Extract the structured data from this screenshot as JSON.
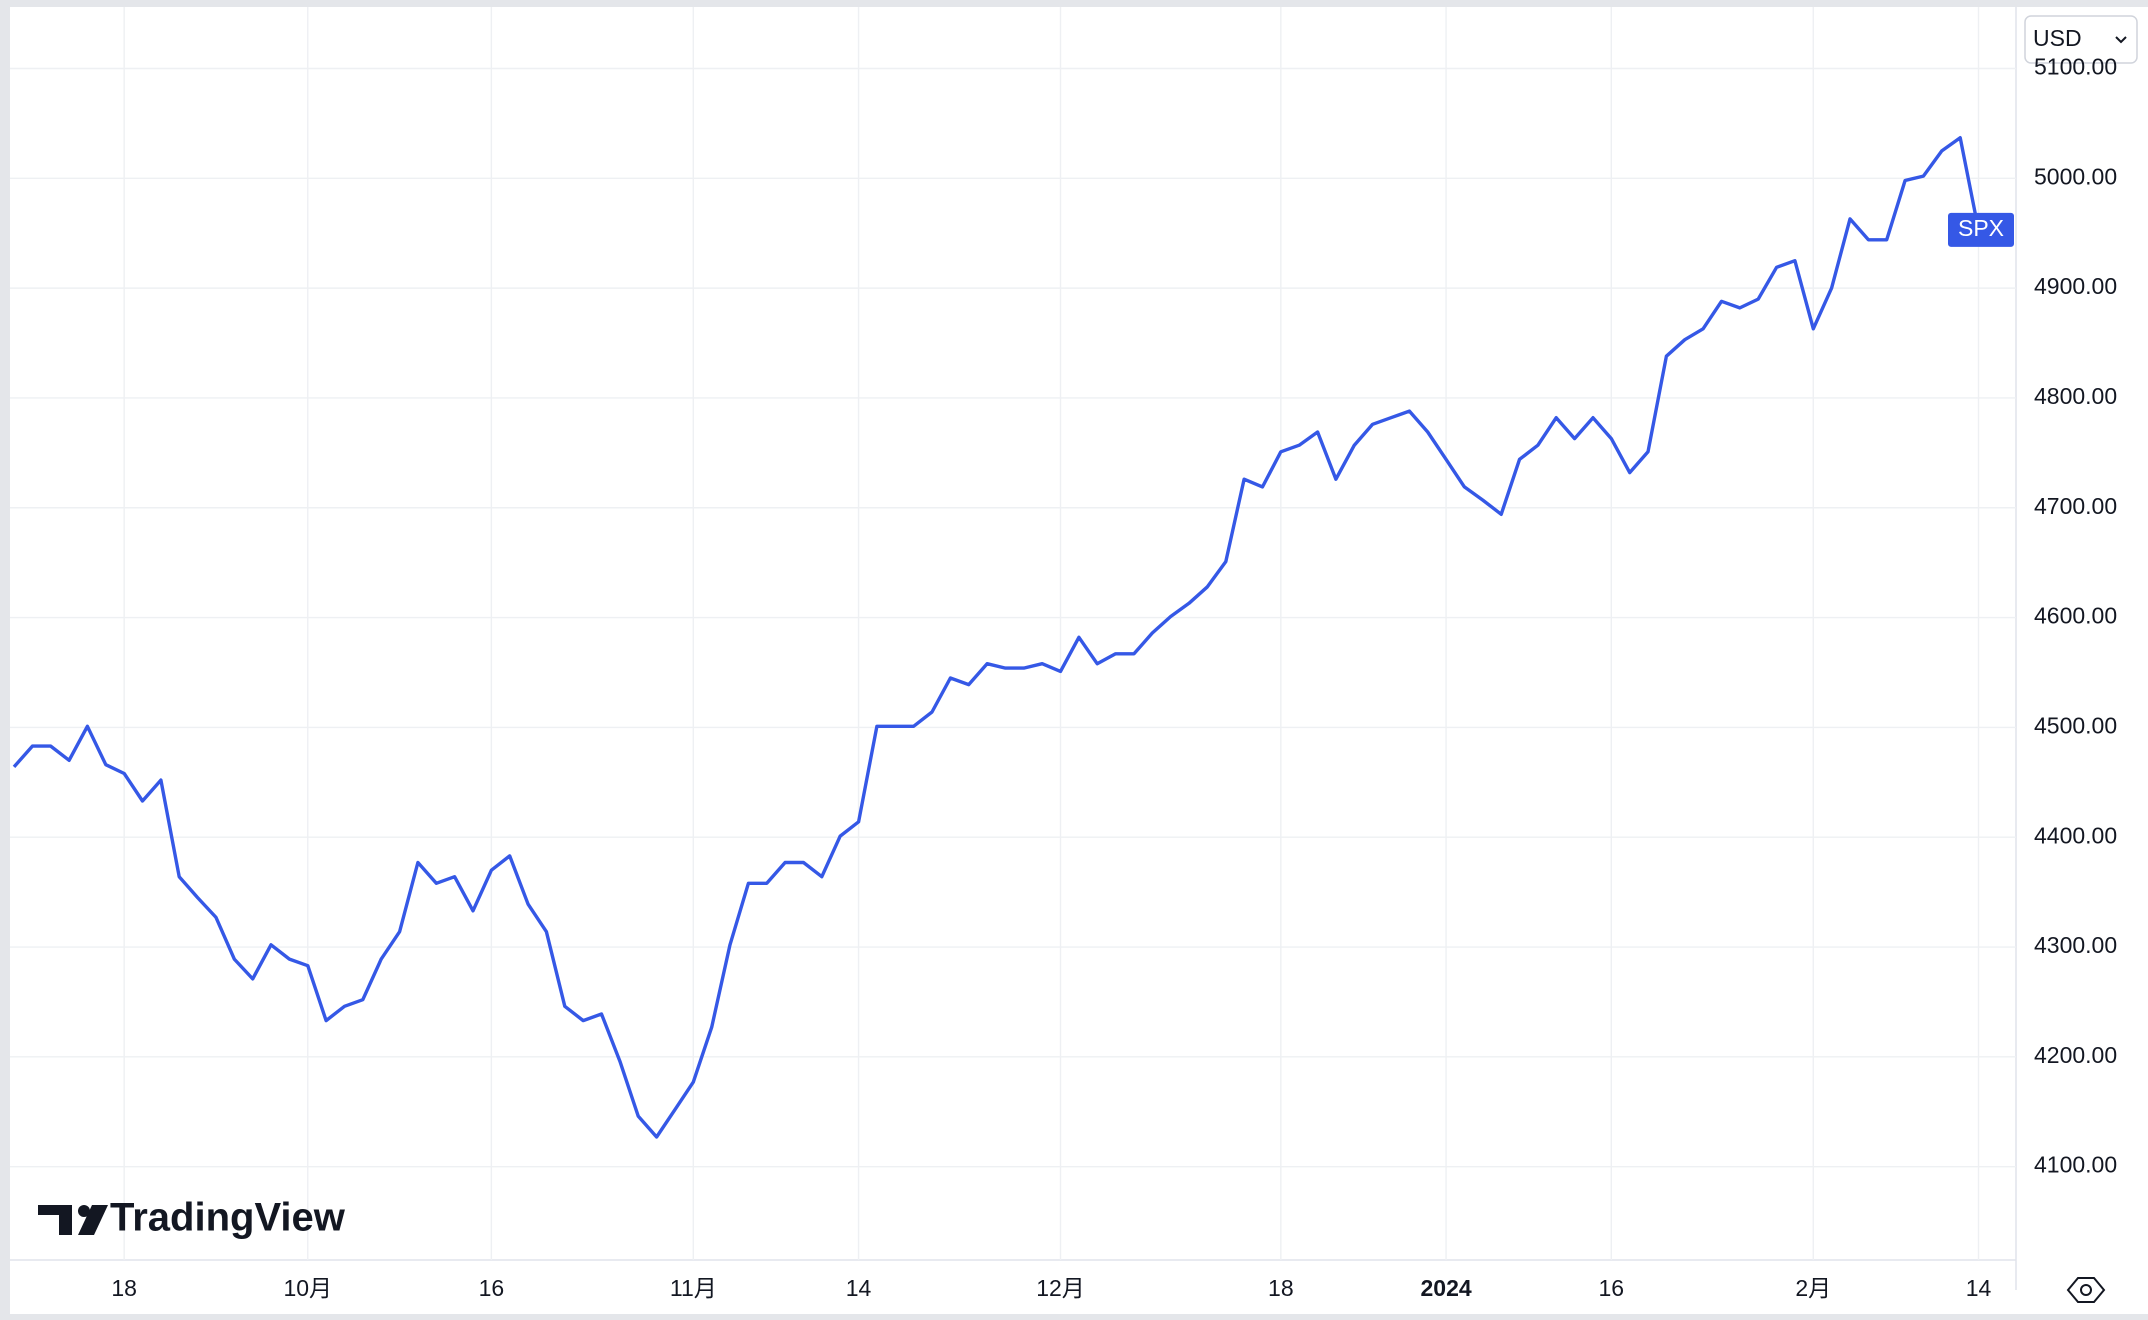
{
  "chart_data": {
    "type": "line",
    "logo": "TradingView",
    "currency": "USD",
    "categories": [
      null,
      null,
      null,
      null,
      null,
      null,
      "18",
      null,
      null,
      null,
      null,
      null,
      null,
      null,
      null,
      null,
      "10月",
      null,
      null,
      null,
      null,
      null,
      null,
      null,
      null,
      null,
      "16",
      null,
      null,
      null,
      null,
      null,
      null,
      null,
      null,
      null,
      null,
      "11月",
      null,
      null,
      null,
      null,
      null,
      null,
      null,
      null,
      "14",
      null,
      null,
      null,
      null,
      null,
      null,
      null,
      null,
      null,
      null,
      "12月",
      null,
      null,
      null,
      null,
      null,
      null,
      null,
      null,
      null,
      null,
      null,
      "18",
      null,
      null,
      null,
      null,
      null,
      null,
      null,
      null,
      "2024",
      null,
      null,
      null,
      null,
      null,
      null,
      null,
      null,
      "16",
      null,
      null,
      null,
      null,
      null,
      null,
      null,
      null,
      null,
      null,
      "2月",
      null,
      null,
      null,
      null,
      null,
      null,
      null,
      null,
      "14"
    ],
    "series": [
      {
        "name": "SPX",
        "color": "#3558e6",
        "values": [
          4464,
          4483,
          4483,
          4470,
          4501,
          4466,
          4458,
          4433,
          4452,
          4364,
          4345,
          4327,
          4289,
          4271,
          4302,
          4289,
          4283,
          4233,
          4246,
          4252,
          4289,
          4314,
          4377,
          4358,
          4364,
          4333,
          4370,
          4383,
          4339,
          4314,
          4246,
          4233,
          4239,
          4196,
          4146,
          4127,
          4152,
          4177,
          4227,
          4302,
          4358,
          4358,
          4377,
          4377,
          4364,
          4401,
          4414,
          4501,
          4501,
          4501,
          4514,
          4545,
          4539,
          4558,
          4554,
          4554,
          4558,
          4551,
          4582,
          4558,
          4567,
          4567,
          4586,
          4601,
          4613,
          4628,
          4651,
          4726,
          4719,
          4751,
          4757,
          4769,
          4726,
          4757,
          4776,
          4782,
          4788,
          4769,
          4744,
          4719,
          4707,
          4694,
          4744,
          4757,
          4782,
          4763,
          4782,
          4763,
          4732,
          4751,
          4838,
          4853,
          4863,
          4888,
          4882,
          4890,
          4919,
          4925,
          4863,
          4900,
          4963,
          4944,
          4944,
          4998,
          5002,
          5025,
          5037,
          4953
        ]
      }
    ],
    "ylim": [
      4015,
      5156
    ],
    "yticks": [
      {
        "value": 4100,
        "label": "4100.00"
      },
      {
        "value": 4200,
        "label": "4200.00"
      },
      {
        "value": 4300,
        "label": "4300.00"
      },
      {
        "value": 4400,
        "label": "4400.00"
      },
      {
        "value": 4500,
        "label": "4500.00"
      },
      {
        "value": 4600,
        "label": "4600.00"
      },
      {
        "value": 4700,
        "label": "4700.00"
      },
      {
        "value": 4800,
        "label": "4800.00"
      },
      {
        "value": 4900,
        "label": "4900.00"
      },
      {
        "value": 5000,
        "label": "5000.00"
      },
      {
        "value": 5100,
        "label": "5100.00"
      }
    ],
    "grid": true
  }
}
